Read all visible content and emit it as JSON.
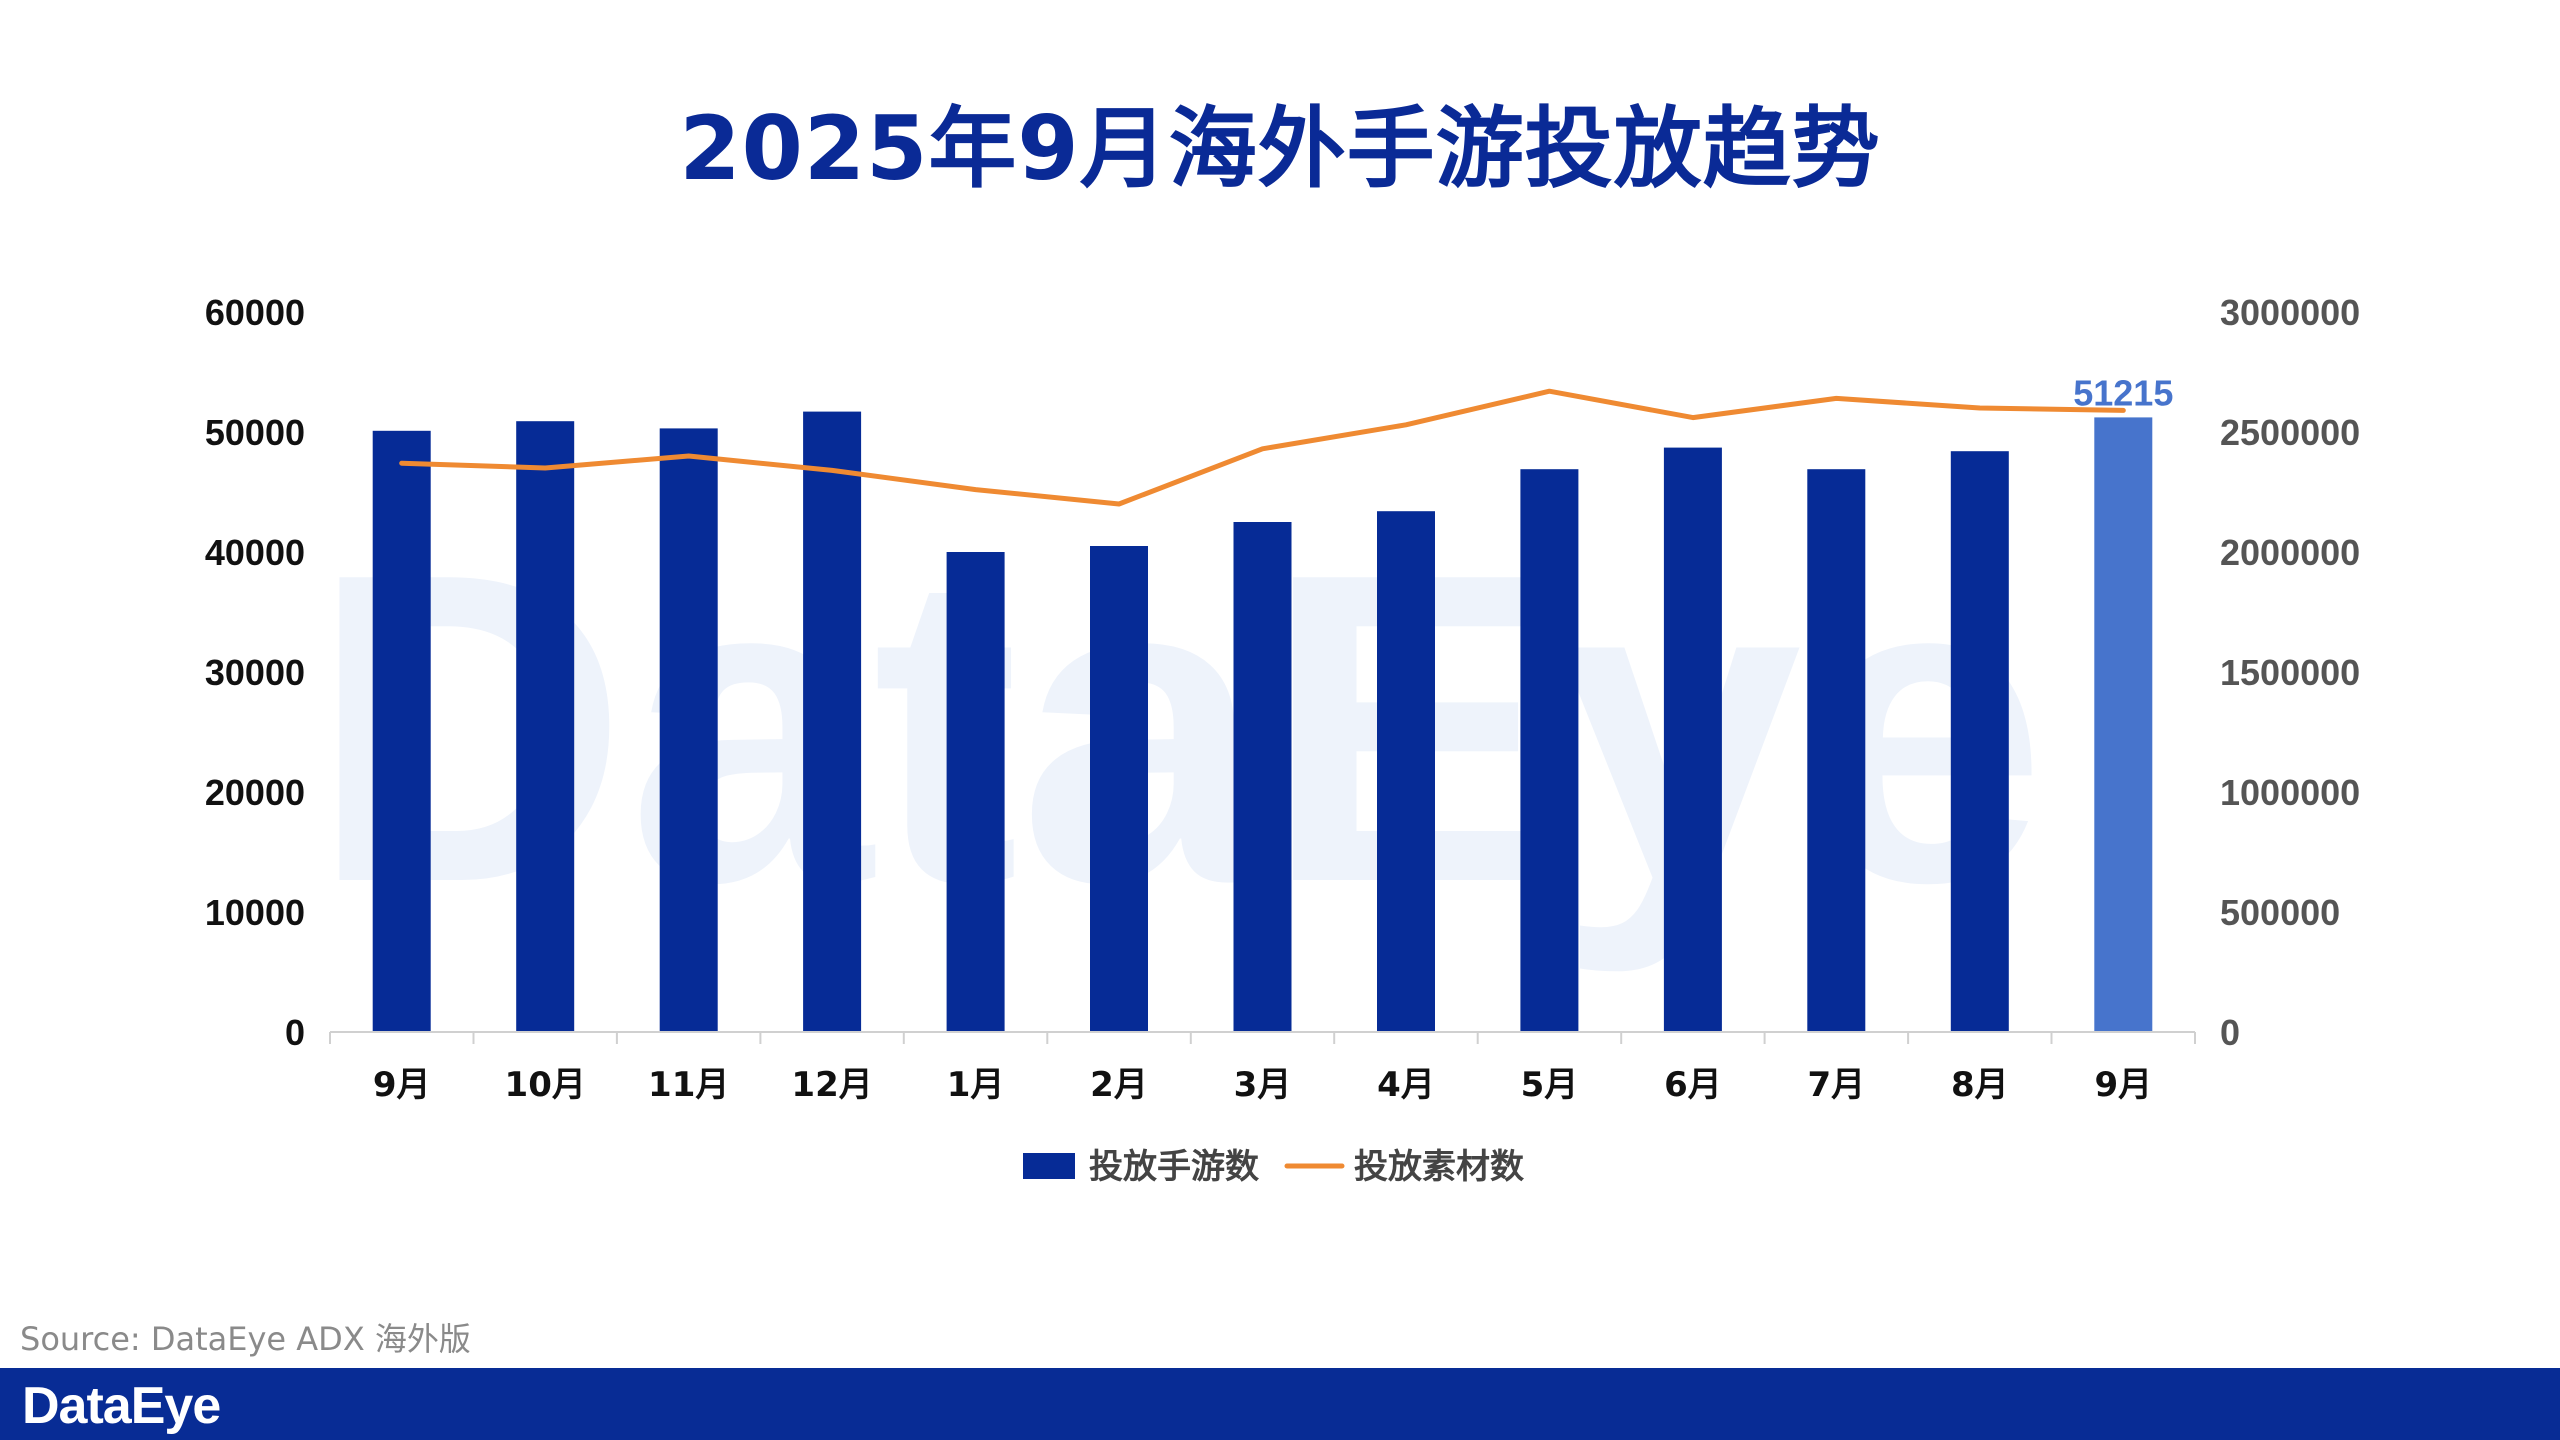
{
  "title": "2025年9月海外手游投放趋势",
  "source": "Source: DataEye ADX 海外版",
  "footer_logo": "DataEye",
  "watermark": "DataEye",
  "colors": {
    "bar": "#062b96",
    "highlight_bar": "#4774cc",
    "line": "#ef8a32",
    "title": "#0a2a96",
    "footer": "#082c95",
    "data_label": "#4774cc"
  },
  "chart_data": {
    "type": "bar",
    "categories": [
      "9月",
      "10月",
      "11月",
      "12月",
      "1月",
      "2月",
      "3月",
      "4月",
      "5月",
      "6月",
      "7月",
      "8月",
      "9月"
    ],
    "series": [
      {
        "name": "投放手游数",
        "type": "bar",
        "axis": "left",
        "values": [
          50100,
          50900,
          50300,
          51700,
          40000,
          40500,
          42500,
          43400,
          46900,
          48700,
          46900,
          48400,
          51215
        ]
      },
      {
        "name": "投放素材数",
        "type": "line",
        "axis": "right",
        "values": [
          2370000,
          2350000,
          2400000,
          2340000,
          2260000,
          2200000,
          2430000,
          2530000,
          2670000,
          2560000,
          2640000,
          2600000,
          2590000
        ]
      }
    ],
    "highlight_index": 12,
    "data_labels": [
      {
        "series": 0,
        "index": 12,
        "text": "51215"
      }
    ],
    "y_left": {
      "min": 0,
      "max": 60000,
      "ticks": [
        "0",
        "10000",
        "20000",
        "30000",
        "40000",
        "50000",
        "60000"
      ]
    },
    "y_right": {
      "min": 0,
      "max": 3000000,
      "ticks": [
        "0",
        "500000",
        "1000000",
        "1500000",
        "2000000",
        "2500000",
        "3000000"
      ]
    },
    "legend": [
      "投放手游数",
      "投放素材数"
    ],
    "legend_position": "bottom",
    "grid": false
  }
}
